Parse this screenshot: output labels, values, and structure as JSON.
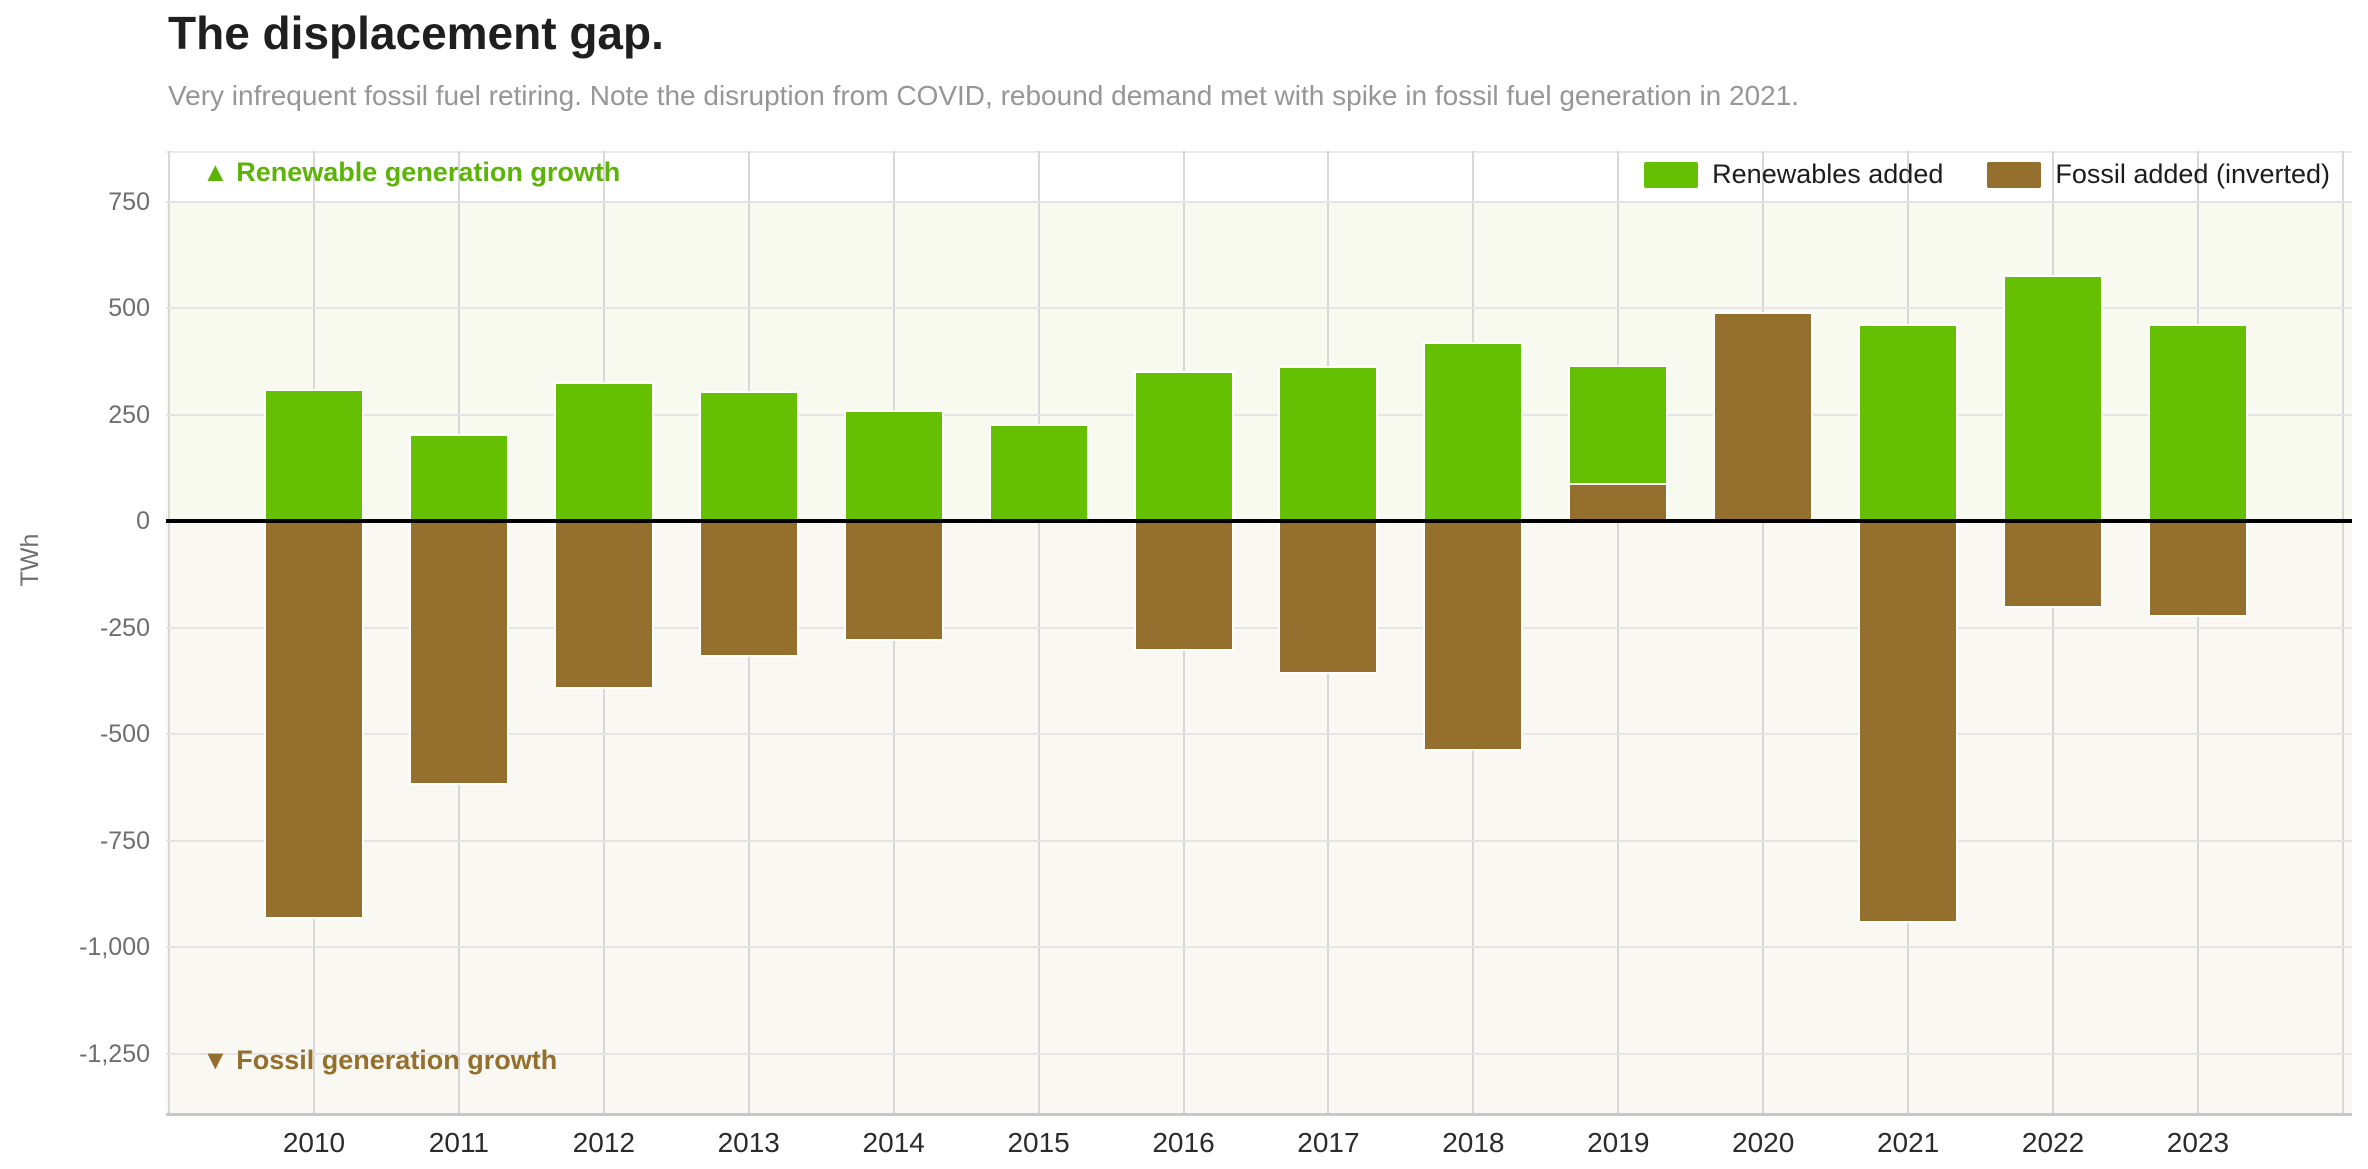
{
  "page": {
    "title": "The displacement gap.",
    "subtitle": "Very infrequent fossil fuel retiring. Note the disruption from COVID, rebound demand met with spike in fossil fuel generation in 2021."
  },
  "legend": {
    "items": [
      {
        "id": "renewables",
        "label": "Renewables added",
        "color": "#65bf03"
      },
      {
        "id": "fossil",
        "label": "Fossil added (inverted)",
        "color": "#946f2d"
      }
    ]
  },
  "annotations": {
    "renewable": {
      "marker": "▲",
      "label": "Renewable generation growth",
      "color": "#5bb406"
    },
    "fossil": {
      "marker": "▼",
      "label": "Fossil generation growth",
      "color": "#946f2d"
    }
  },
  "chart_data": {
    "type": "bar",
    "categories": [
      "2010",
      "2011",
      "2012",
      "2013",
      "2014",
      "2015",
      "2016",
      "2017",
      "2018",
      "2019",
      "2020",
      "2021",
      "2022",
      "2023"
    ],
    "series": [
      {
        "name": "Renewables added",
        "color": "#65bf03",
        "values": [
          305,
          200,
          322,
          300,
          257,
          222,
          347,
          360,
          415,
          362,
          null,
          458,
          573,
          458
        ]
      },
      {
        "name": "Fossil added (inverted)",
        "color": "#946f2d",
        "values": [
          -930,
          -615,
          -390,
          -315,
          -278,
          0,
          -300,
          -355,
          -535,
          85,
          485,
          -940,
          -200,
          -220
        ]
      }
    ],
    "title": "The displacement gap.",
    "xlabel": "",
    "ylabel": "TWh",
    "yticks": [
      750,
      500,
      250,
      0,
      -250,
      -500,
      -750,
      -1000,
      -1250
    ],
    "ytick_labels": [
      "750",
      "500",
      "250",
      "0",
      "-250",
      "-500",
      "-750",
      "-1,000",
      "-1,250"
    ],
    "ylim": [
      -1400,
      868
    ],
    "zero_line": true,
    "grid": {
      "vertical": true,
      "horizontal": true
    },
    "legend_position": "top-right",
    "notes": {
      "y2020": "renewables bar fully hidden behind taller inverted fossil bar"
    }
  }
}
